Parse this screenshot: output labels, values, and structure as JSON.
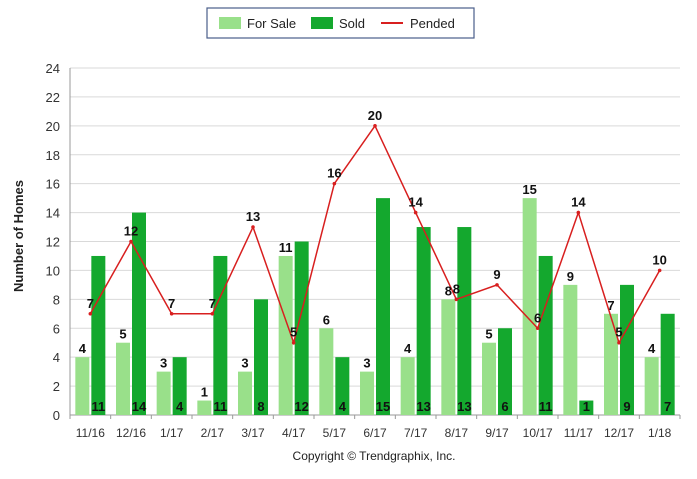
{
  "chart_data": {
    "type": "bar",
    "title": "",
    "ylabel": "Number of Homes",
    "xlabel": "",
    "ylim": [
      0,
      24
    ],
    "y_ticks": [
      0,
      2,
      4,
      6,
      8,
      10,
      12,
      14,
      16,
      18,
      20,
      22,
      24
    ],
    "grid": true,
    "legend_position": "top-center",
    "categories": [
      "11/16",
      "12/16",
      "1/17",
      "2/17",
      "3/17",
      "4/17",
      "5/17",
      "6/17",
      "7/17",
      "8/17",
      "9/17",
      "10/17",
      "11/17",
      "12/17",
      "1/18"
    ],
    "series": [
      {
        "name": "For Sale",
        "kind": "bar",
        "color": "#99e08a",
        "values": [
          4,
          5,
          3,
          1,
          3,
          11,
          6,
          3,
          4,
          8,
          5,
          15,
          9,
          7,
          4
        ]
      },
      {
        "name": "Sold",
        "kind": "bar",
        "color": "#14a82e",
        "values": [
          11,
          14,
          4,
          11,
          8,
          12,
          4,
          15,
          13,
          13,
          6,
          11,
          1,
          9,
          7
        ]
      },
      {
        "name": "Pended",
        "kind": "line",
        "color": "#d81f1f",
        "values": [
          7,
          12,
          7,
          7,
          13,
          5,
          16,
          20,
          14,
          8,
          9,
          6,
          14,
          5,
          10
        ]
      }
    ],
    "footer": "Copyright © Trendgraphix, Inc."
  }
}
